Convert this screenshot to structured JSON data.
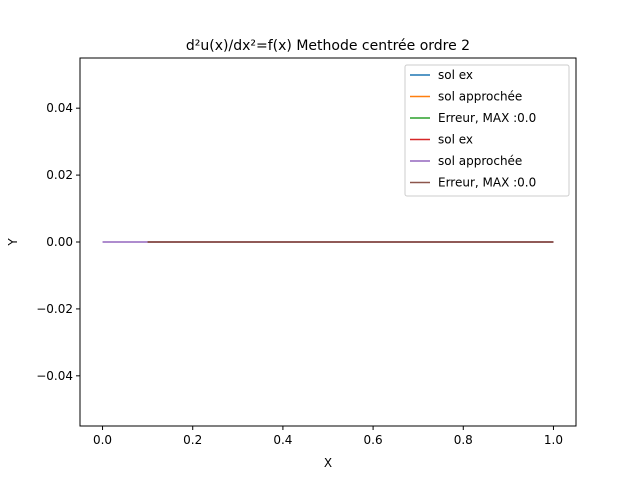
{
  "chart_data": {
    "type": "line",
    "title": "d²u(x)/dx²=f(x) Methode centrée ordre 2",
    "xlabel": "X",
    "ylabel": "Y",
    "xlim": [
      -0.05,
      1.05
    ],
    "ylim": [
      -0.055,
      0.055
    ],
    "xticks": [
      0.0,
      0.2,
      0.4,
      0.6,
      0.8,
      1.0
    ],
    "xtick_labels": [
      "0.0",
      "0.2",
      "0.4",
      "0.6",
      "0.8",
      "1.0"
    ],
    "yticks": [
      -0.04,
      -0.02,
      0.0,
      0.02,
      0.04
    ],
    "ytick_labels": [
      "−0.04",
      "−0.02",
      "0.00",
      "0.02",
      "0.04"
    ],
    "grid": false,
    "legend_position": "top-right",
    "series": [
      {
        "name": "sol ex",
        "color": "#1f77b4",
        "x": [
          0.1,
          1.0
        ],
        "y": [
          0,
          0
        ]
      },
      {
        "name": "sol approchée",
        "color": "#ff7f0e",
        "x": [
          0.1,
          1.0
        ],
        "y": [
          0,
          0
        ]
      },
      {
        "name": "Erreur, MAX :0.0",
        "color": "#2ca02c",
        "x": [
          0.1,
          1.0
        ],
        "y": [
          0,
          0
        ]
      },
      {
        "name": "sol ex",
        "color": "#d62728",
        "x": [
          0.1,
          1.0
        ],
        "y": [
          0,
          0
        ]
      },
      {
        "name": "sol approchée",
        "color": "#9467bd",
        "x": [
          0.0,
          1.0
        ],
        "y": [
          0,
          0
        ]
      },
      {
        "name": "Erreur, MAX :0.0",
        "color": "#8c564b",
        "x": [
          0.1,
          1.0
        ],
        "y": [
          0,
          0
        ]
      }
    ]
  }
}
